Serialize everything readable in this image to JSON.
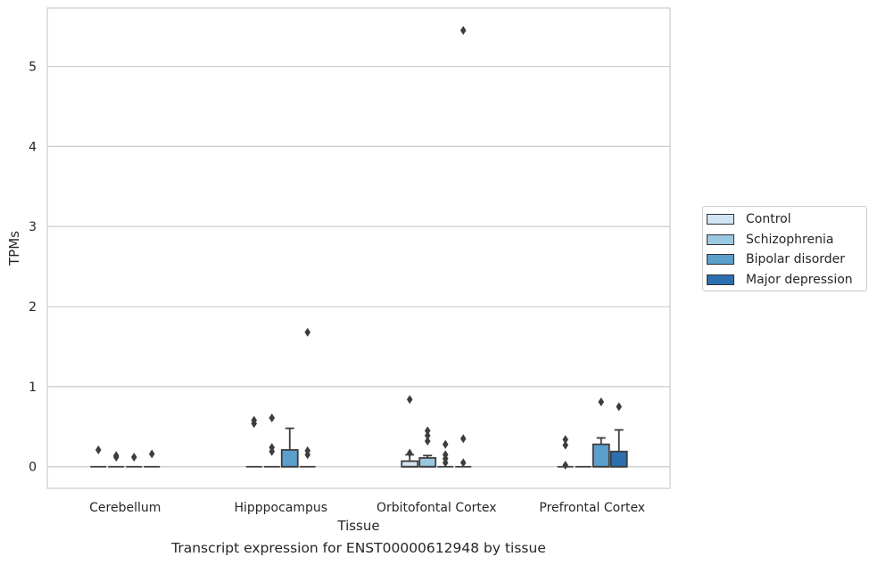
{
  "caption": "Transcript expression for ENST00000612948 by tissue",
  "chart_data": {
    "type": "box",
    "xlabel": "Tissue",
    "ylabel": "TPMs",
    "ylim": [
      -0.27,
      5.73
    ],
    "yticks": [
      0,
      1,
      2,
      3,
      4,
      5
    ],
    "grid": true,
    "legend_position": "right",
    "categories": [
      "Cerebellum",
      "Hipppocampus",
      "Orbitofontal Cortex",
      "Prefrontal Cortex"
    ],
    "series": [
      {
        "name": "Control",
        "color": "#d2e3f3",
        "boxes": [
          {
            "q1": 0,
            "median": 0,
            "q3": 0,
            "whisker_low": 0,
            "whisker_high": 0,
            "outliers": [
              0.21
            ]
          },
          {
            "q1": 0,
            "median": 0,
            "q3": 0,
            "whisker_low": 0,
            "whisker_high": 0,
            "outliers": [
              0.54,
              0.58
            ]
          },
          {
            "q1": 0,
            "median": 0,
            "q3": 0.07,
            "whisker_low": 0,
            "whisker_high": 0.15,
            "outliers": [
              0.17,
              0.84
            ]
          },
          {
            "q1": 0,
            "median": 0,
            "q3": 0,
            "whisker_low": 0,
            "whisker_high": 0,
            "outliers": [
              0.02,
              0.27,
              0.34
            ]
          }
        ]
      },
      {
        "name": "Schizophrenia",
        "color": "#9ac8e1",
        "boxes": [
          {
            "q1": 0,
            "median": 0,
            "q3": 0,
            "whisker_low": 0,
            "whisker_high": 0,
            "outliers": [
              0.12,
              0.14
            ]
          },
          {
            "q1": 0,
            "median": 0,
            "q3": 0,
            "whisker_low": 0,
            "whisker_high": 0,
            "outliers": [
              0.19,
              0.24,
              0.61
            ]
          },
          {
            "q1": 0,
            "median": 0,
            "q3": 0.11,
            "whisker_low": 0,
            "whisker_high": 0.14,
            "outliers": [
              0.32,
              0.39,
              0.45
            ]
          },
          {
            "q1": 0,
            "median": 0,
            "q3": 0,
            "whisker_low": 0,
            "whisker_high": 0,
            "outliers": []
          }
        ]
      },
      {
        "name": "Bipolar disorder",
        "color": "#5b9fcd",
        "boxes": [
          {
            "q1": 0,
            "median": 0,
            "q3": 0,
            "whisker_low": 0,
            "whisker_high": 0,
            "outliers": [
              0.12
            ]
          },
          {
            "q1": 0,
            "median": 0,
            "q3": 0.21,
            "whisker_low": 0,
            "whisker_high": 0.48,
            "outliers": []
          },
          {
            "q1": 0,
            "median": 0,
            "q3": 0,
            "whisker_low": 0,
            "whisker_high": 0,
            "outliers": [
              0.05,
              0.1,
              0.15,
              0.28
            ]
          },
          {
            "q1": 0,
            "median": 0,
            "q3": 0.28,
            "whisker_low": 0,
            "whisker_high": 0.36,
            "outliers": [
              0.81
            ]
          }
        ]
      },
      {
        "name": "Major depression",
        "color": "#2c6fb0",
        "boxes": [
          {
            "q1": 0,
            "median": 0,
            "q3": 0,
            "whisker_low": 0,
            "whisker_high": 0,
            "outliers": [
              0.16
            ]
          },
          {
            "q1": 0,
            "median": 0,
            "q3": 0,
            "whisker_low": 0,
            "whisker_high": 0,
            "outliers": [
              0.15,
              0.2,
              1.68
            ]
          },
          {
            "q1": 0,
            "median": 0,
            "q3": 0,
            "whisker_low": 0,
            "whisker_high": 0,
            "outliers": [
              0.05,
              0.35,
              5.45
            ]
          },
          {
            "q1": 0,
            "median": 0,
            "q3": 0.19,
            "whisker_low": 0,
            "whisker_high": 0.46,
            "outliers": [
              0.75
            ]
          }
        ]
      }
    ]
  }
}
